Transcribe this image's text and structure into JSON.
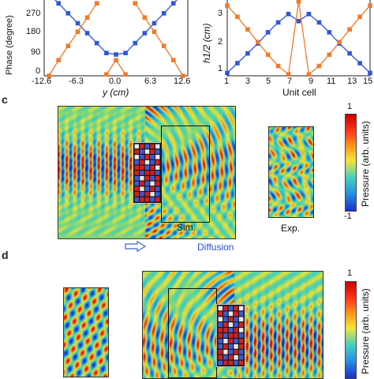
{
  "colors": {
    "blue": "#2f56d6",
    "orange": "#f07a2a",
    "red": "#d81a1a",
    "cyan": "#24c6e0",
    "yellow": "#f3e53a",
    "green": "#7fd08a"
  },
  "panel_c": {
    "label": "c"
  },
  "panel_d": {
    "label": "d"
  },
  "chart_data": [
    {
      "type": "line",
      "xlabel": "y (cm)",
      "ylabel": "Phase (degree)",
      "x_ticks": [
        "-12.6",
        "-6.3",
        "0.0",
        "6.3",
        "12.6"
      ],
      "y_ticks": [
        "0",
        "90",
        "180",
        "270"
      ],
      "xlim": [
        -13.5,
        13.5
      ],
      "ylim": [
        0,
        320
      ],
      "series": [
        {
          "color": "#2f56d6",
          "x": [
            -12.6,
            -10.8,
            -9.0,
            -7.2,
            -5.4,
            -3.6,
            -1.8,
            0,
            1.8,
            3.6,
            5.4,
            7.2,
            9.0,
            10.8,
            12.6
          ],
          "y": [
            346,
            306,
            264,
            222,
            180,
            138,
            96,
            90,
            96,
            138,
            180,
            222,
            264,
            306,
            346
          ]
        },
        {
          "color": "#f07a2a",
          "x": [
            -12.6,
            -10.8,
            -9.0,
            -7.2,
            -5.4,
            -3.6,
            -1.8,
            0,
            1.8,
            3.6,
            5.4,
            7.2,
            9.0,
            10.8,
            12.6
          ],
          "y": [
            0,
            66,
            126,
            186,
            246,
            306,
            6,
            66,
            6,
            306,
            246,
            186,
            126,
            66,
            0
          ]
        }
      ]
    },
    {
      "type": "line",
      "xlabel": "Unit cell",
      "ylabel": "h1/2 (cm)",
      "x_ticks": [
        "1",
        "3",
        "5",
        "7",
        "9",
        "11",
        "13",
        "15"
      ],
      "y_ticks": [
        "1",
        "2",
        "3"
      ],
      "xlim": [
        1,
        15
      ],
      "ylim": [
        0.9,
        3.6
      ],
      "series": [
        {
          "color": "#2f56d6",
          "x": [
            1,
            2,
            3,
            4,
            5,
            6,
            7,
            8,
            9,
            10,
            11,
            12,
            13,
            14,
            15
          ],
          "y": [
            1.0,
            1.35,
            1.7,
            2.05,
            2.45,
            2.8,
            3.1,
            2.85,
            3.1,
            2.8,
            2.45,
            2.05,
            1.7,
            1.35,
            1.0
          ]
        },
        {
          "color": "#f07a2a",
          "x": [
            1,
            2,
            3,
            4,
            5,
            6,
            7,
            8,
            9,
            10,
            11,
            12,
            13,
            14,
            15
          ],
          "y": [
            3.4,
            3.0,
            2.55,
            2.1,
            1.65,
            1.25,
            0.95,
            3.55,
            0.95,
            1.25,
            1.65,
            2.1,
            2.55,
            3.0,
            3.4
          ]
        }
      ]
    }
  ],
  "field_c": {
    "sim_label": "Sim.",
    "exp_label": "Exp.",
    "diffusion_label": "Diffusion",
    "colorbar": {
      "max": "1",
      "min": "-1",
      "title": "Pressure (arb. units)"
    }
  },
  "field_d": {
    "colorbar": {
      "max": "1",
      "title": "Pressure (arb. units)"
    }
  },
  "icons": {
    "arrow": "right-arrow-icon"
  }
}
